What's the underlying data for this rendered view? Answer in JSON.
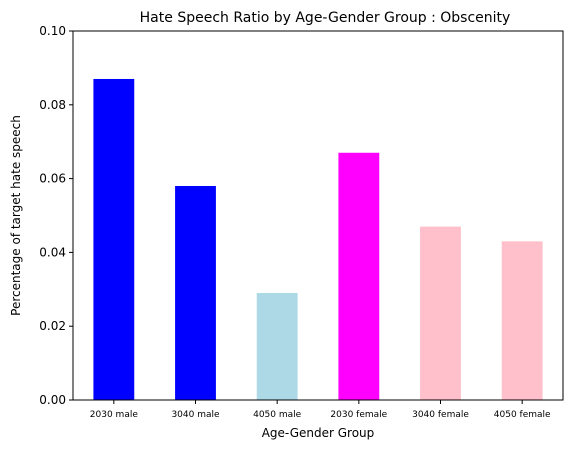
{
  "chart_data": {
    "type": "bar",
    "title": "Hate Speech Ratio by Age-Gender Group : Obscenity",
    "xlabel": "Age-Gender Group",
    "ylabel": "Percentage of target hate speech",
    "categories": [
      "2030 male",
      "3040 male",
      "4050 male",
      "2030 female",
      "3040 female",
      "4050 female"
    ],
    "values": [
      0.087,
      0.058,
      0.029,
      0.067,
      0.047,
      0.043
    ],
    "colors": [
      "#0000ff",
      "#0000ff",
      "#add8e6",
      "#ff00ff",
      "#ffc0cb",
      "#ffc0cb"
    ],
    "ylim": [
      0,
      0.1
    ],
    "yticks": [
      0.0,
      0.02,
      0.04,
      0.06,
      0.08,
      0.1
    ],
    "ytick_labels": [
      "0.00",
      "0.02",
      "0.04",
      "0.06",
      "0.08",
      "0.10"
    ],
    "grid": false,
    "legend": false
  }
}
